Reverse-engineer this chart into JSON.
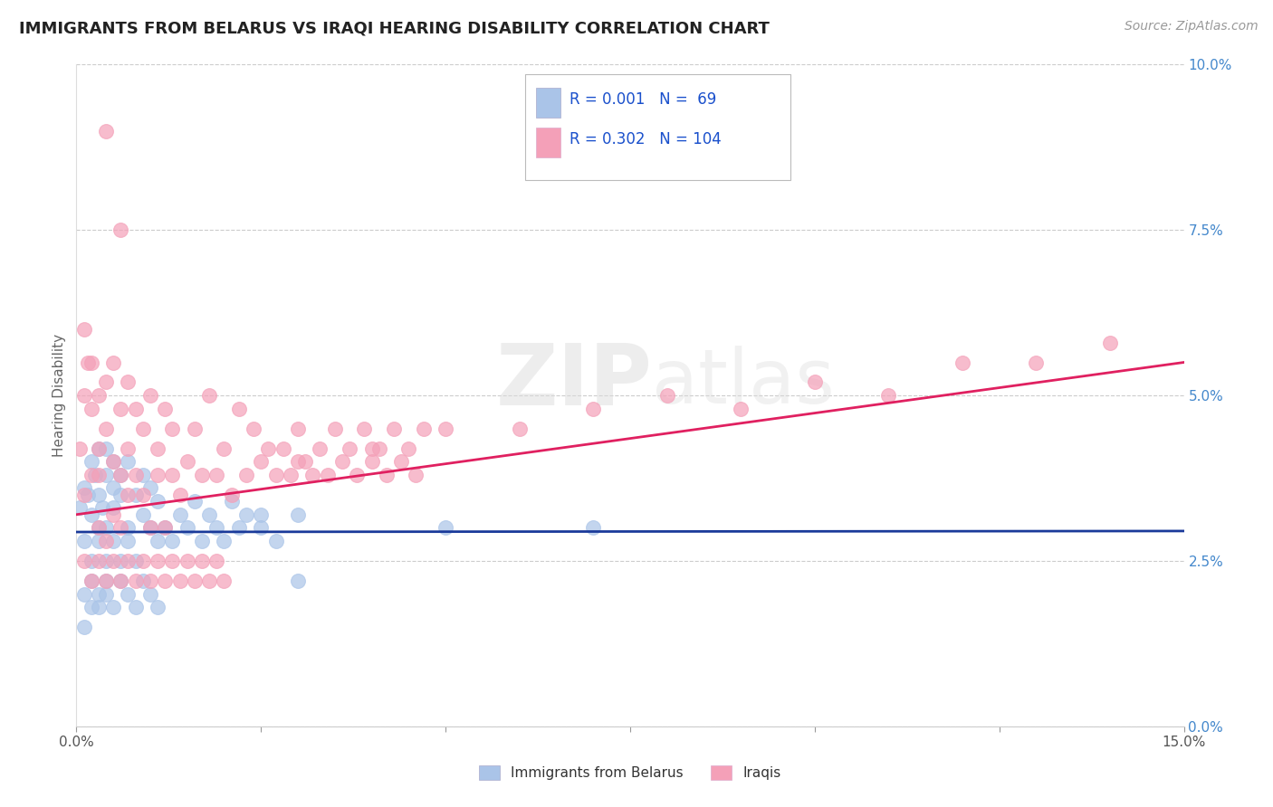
{
  "title": "IMMIGRANTS FROM BELARUS VS IRAQI HEARING DISABILITY CORRELATION CHART",
  "source": "Source: ZipAtlas.com",
  "ylabel": "Hearing Disability",
  "xlim": [
    0.0,
    0.15
  ],
  "ylim": [
    0.0,
    0.1
  ],
  "color_belarus": "#aac4e8",
  "color_iraqi": "#f4a0b8",
  "line_color_belarus": "#1a3a9a",
  "line_color_iraqi": "#e02060",
  "background_color": "#ffffff",
  "belarus_x": [
    0.0005,
    0.001,
    0.001,
    0.0015,
    0.002,
    0.002,
    0.002,
    0.0025,
    0.003,
    0.003,
    0.003,
    0.003,
    0.0035,
    0.004,
    0.004,
    0.004,
    0.004,
    0.005,
    0.005,
    0.005,
    0.005,
    0.006,
    0.006,
    0.006,
    0.007,
    0.007,
    0.007,
    0.008,
    0.008,
    0.009,
    0.009,
    0.01,
    0.01,
    0.011,
    0.011,
    0.012,
    0.013,
    0.014,
    0.015,
    0.016,
    0.017,
    0.018,
    0.019,
    0.02,
    0.021,
    0.022,
    0.023,
    0.025,
    0.027,
    0.03,
    0.001,
    0.001,
    0.002,
    0.002,
    0.003,
    0.003,
    0.004,
    0.004,
    0.005,
    0.006,
    0.007,
    0.008,
    0.009,
    0.01,
    0.011,
    0.025,
    0.03,
    0.05,
    0.07
  ],
  "belarus_y": [
    0.033,
    0.036,
    0.028,
    0.035,
    0.04,
    0.032,
    0.025,
    0.038,
    0.042,
    0.03,
    0.035,
    0.028,
    0.033,
    0.038,
    0.025,
    0.03,
    0.042,
    0.036,
    0.028,
    0.033,
    0.04,
    0.035,
    0.025,
    0.038,
    0.03,
    0.04,
    0.028,
    0.035,
    0.025,
    0.032,
    0.038,
    0.03,
    0.036,
    0.028,
    0.034,
    0.03,
    0.028,
    0.032,
    0.03,
    0.034,
    0.028,
    0.032,
    0.03,
    0.028,
    0.034,
    0.03,
    0.032,
    0.03,
    0.028,
    0.032,
    0.02,
    0.015,
    0.018,
    0.022,
    0.02,
    0.018,
    0.022,
    0.02,
    0.018,
    0.022,
    0.02,
    0.018,
    0.022,
    0.02,
    0.018,
    0.032,
    0.022,
    0.03,
    0.03
  ],
  "iraqi_x": [
    0.0005,
    0.001,
    0.001,
    0.001,
    0.0015,
    0.002,
    0.002,
    0.002,
    0.003,
    0.003,
    0.003,
    0.003,
    0.004,
    0.004,
    0.004,
    0.005,
    0.005,
    0.005,
    0.006,
    0.006,
    0.006,
    0.007,
    0.007,
    0.007,
    0.008,
    0.008,
    0.009,
    0.009,
    0.01,
    0.01,
    0.011,
    0.011,
    0.012,
    0.012,
    0.013,
    0.013,
    0.014,
    0.015,
    0.016,
    0.017,
    0.018,
    0.019,
    0.02,
    0.021,
    0.022,
    0.023,
    0.024,
    0.025,
    0.026,
    0.027,
    0.028,
    0.029,
    0.03,
    0.031,
    0.032,
    0.033,
    0.034,
    0.035,
    0.036,
    0.037,
    0.038,
    0.039,
    0.04,
    0.041,
    0.042,
    0.043,
    0.044,
    0.045,
    0.046,
    0.047,
    0.001,
    0.002,
    0.003,
    0.004,
    0.005,
    0.006,
    0.007,
    0.008,
    0.009,
    0.01,
    0.011,
    0.012,
    0.013,
    0.014,
    0.015,
    0.016,
    0.017,
    0.018,
    0.019,
    0.02,
    0.03,
    0.04,
    0.05,
    0.06,
    0.07,
    0.08,
    0.09,
    0.1,
    0.11,
    0.12,
    0.13,
    0.14,
    0.006,
    0.004
  ],
  "iraqi_y": [
    0.042,
    0.05,
    0.06,
    0.035,
    0.055,
    0.048,
    0.038,
    0.055,
    0.042,
    0.03,
    0.05,
    0.038,
    0.045,
    0.028,
    0.052,
    0.04,
    0.032,
    0.055,
    0.038,
    0.048,
    0.03,
    0.042,
    0.035,
    0.052,
    0.038,
    0.048,
    0.035,
    0.045,
    0.03,
    0.05,
    0.038,
    0.042,
    0.03,
    0.048,
    0.038,
    0.045,
    0.035,
    0.04,
    0.045,
    0.038,
    0.05,
    0.038,
    0.042,
    0.035,
    0.048,
    0.038,
    0.045,
    0.04,
    0.042,
    0.038,
    0.042,
    0.038,
    0.045,
    0.04,
    0.038,
    0.042,
    0.038,
    0.045,
    0.04,
    0.042,
    0.038,
    0.045,
    0.04,
    0.042,
    0.038,
    0.045,
    0.04,
    0.042,
    0.038,
    0.045,
    0.025,
    0.022,
    0.025,
    0.022,
    0.025,
    0.022,
    0.025,
    0.022,
    0.025,
    0.022,
    0.025,
    0.022,
    0.025,
    0.022,
    0.025,
    0.022,
    0.025,
    0.022,
    0.025,
    0.022,
    0.04,
    0.042,
    0.045,
    0.045,
    0.048,
    0.05,
    0.048,
    0.052,
    0.05,
    0.055,
    0.055,
    0.058,
    0.075,
    0.09
  ]
}
